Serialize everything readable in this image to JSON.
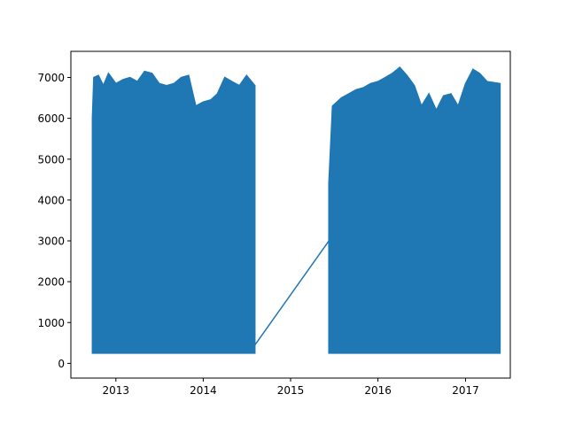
{
  "chart_data": {
    "type": "line",
    "title": "",
    "xlabel": "",
    "ylabel": "",
    "xlim": [
      "2012-06-27",
      "2017-07-07"
    ],
    "ylim": [
      -360,
      7640
    ],
    "grid": false,
    "legend": "none",
    "x_ticks": [
      {
        "value": "2013-01-01",
        "label": "2013"
      },
      {
        "value": "2014-01-01",
        "label": "2014"
      },
      {
        "value": "2015-01-01",
        "label": "2015"
      },
      {
        "value": "2016-01-01",
        "label": "2016"
      },
      {
        "value": "2017-01-01",
        "label": "2017"
      }
    ],
    "y_ticks": [
      {
        "value": 0,
        "label": "0"
      },
      {
        "value": 1000,
        "label": "1000"
      },
      {
        "value": 2000,
        "label": "2000"
      },
      {
        "value": 3000,
        "label": "3000"
      },
      {
        "value": 4000,
        "label": "4000"
      },
      {
        "value": 5000,
        "label": "5000"
      },
      {
        "value": 6000,
        "label": "6000"
      },
      {
        "value": 7000,
        "label": "7000"
      }
    ],
    "series": [
      {
        "color": "#1f77b4",
        "note_values": "dense oscillating series; upper envelope shown as date,value pairs",
        "segment_1": {
          "start": "2012-09-25",
          "end": "2014-08-05",
          "low": 250,
          "envelope": [
            [
              "2012-09-25",
              6000
            ],
            [
              "2012-10-01",
              7000
            ],
            [
              "2012-10-20",
              7050
            ],
            [
              "2012-11-10",
              6800
            ],
            [
              "2012-12-01",
              7100
            ],
            [
              "2013-01-01",
              6850
            ],
            [
              "2013-02-01",
              6950
            ],
            [
              "2013-03-01",
              7000
            ],
            [
              "2013-04-01",
              6900
            ],
            [
              "2013-05-01",
              7150
            ],
            [
              "2013-06-01",
              7100
            ],
            [
              "2013-07-01",
              6850
            ],
            [
              "2013-08-01",
              6800
            ],
            [
              "2013-09-01",
              6850
            ],
            [
              "2013-10-01",
              7000
            ],
            [
              "2013-11-01",
              7050
            ],
            [
              "2013-12-01",
              6300
            ],
            [
              "2014-01-01",
              6400
            ],
            [
              "2014-02-01",
              6450
            ],
            [
              "2014-03-01",
              6600
            ],
            [
              "2014-04-01",
              7000
            ],
            [
              "2014-05-01",
              6900
            ],
            [
              "2014-06-01",
              6800
            ],
            [
              "2014-07-01",
              7050
            ],
            [
              "2014-08-05",
              6800
            ]
          ]
        },
        "bridge": [
          [
            "2014-08-05",
            450
          ],
          [
            "2015-06-10",
            3000
          ]
        ],
        "segment_2": {
          "start": "2015-06-10",
          "end": "2017-05-25",
          "low": 250,
          "envelope": [
            [
              "2015-06-10",
              4400
            ],
            [
              "2015-06-25",
              6300
            ],
            [
              "2015-08-01",
              6500
            ],
            [
              "2015-09-01",
              6600
            ],
            [
              "2015-10-01",
              6700
            ],
            [
              "2015-11-01",
              6750
            ],
            [
              "2015-12-01",
              6850
            ],
            [
              "2016-01-01",
              6900
            ],
            [
              "2016-02-01",
              7000
            ],
            [
              "2016-03-01",
              7100
            ],
            [
              "2016-04-01",
              7250
            ],
            [
              "2016-05-01",
              7050
            ],
            [
              "2016-06-01",
              6800
            ],
            [
              "2016-07-01",
              6300
            ],
            [
              "2016-08-01",
              6600
            ],
            [
              "2016-09-01",
              6200
            ],
            [
              "2016-10-01",
              6550
            ],
            [
              "2016-11-01",
              6600
            ],
            [
              "2016-12-01",
              6300
            ],
            [
              "2017-01-01",
              6850
            ],
            [
              "2017-02-01",
              7200
            ],
            [
              "2017-03-01",
              7100
            ],
            [
              "2017-04-01",
              6900
            ],
            [
              "2017-05-25",
              6850
            ]
          ]
        }
      }
    ]
  }
}
